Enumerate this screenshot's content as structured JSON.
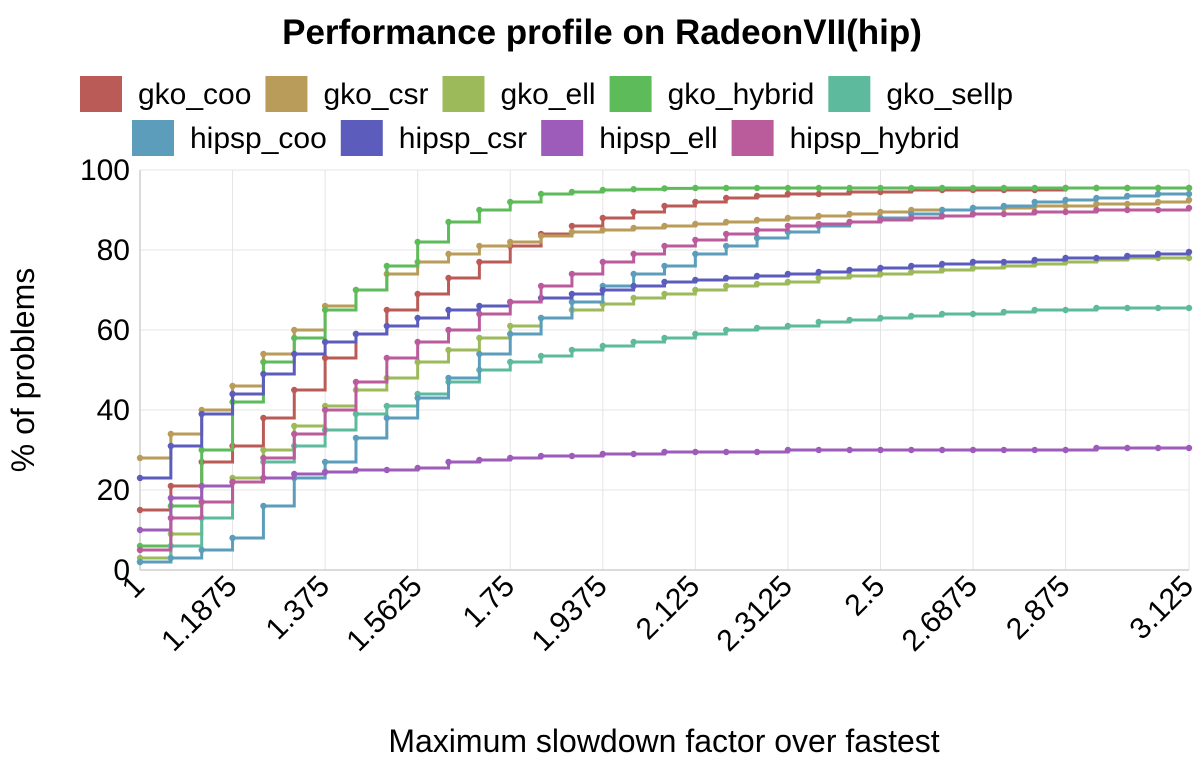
{
  "chart_data": {
    "type": "line",
    "step": true,
    "title": "Performance profile on RadeonVII(hip)",
    "xlabel": "Maximum slowdown factor over fastest",
    "ylabel": "% of problems",
    "xlim": [
      1,
      3.125
    ],
    "ylim": [
      0,
      100
    ],
    "x_ticks": [
      "1",
      "1.1875",
      "1.375",
      "1.5625",
      "1.75",
      "1.9375",
      "2.125",
      "2.3125",
      "2.5",
      "2.6875",
      "2.875",
      "3.125"
    ],
    "y_ticks": [
      "0",
      "20",
      "40",
      "60",
      "80",
      "100"
    ],
    "grid": true,
    "legend_position": "top",
    "x": [
      1.0,
      1.0625,
      1.125,
      1.1875,
      1.25,
      1.3125,
      1.375,
      1.4375,
      1.5,
      1.5625,
      1.625,
      1.6875,
      1.75,
      1.8125,
      1.875,
      1.9375,
      2.0,
      2.0625,
      2.125,
      2.1875,
      2.25,
      2.3125,
      2.375,
      2.4375,
      2.5,
      2.5625,
      2.625,
      2.6875,
      2.75,
      2.8125,
      2.875,
      2.9375,
      3.0,
      3.0625,
      3.125
    ],
    "series": [
      {
        "name": "gko_coo",
        "color": "#bb5b58",
        "values": [
          15,
          21,
          27,
          31,
          38,
          45,
          53,
          59,
          65,
          69,
          73,
          77,
          81,
          84,
          86,
          88,
          89.5,
          91,
          92,
          93,
          93.5,
          94,
          94,
          94.5,
          94.5,
          95,
          95,
          95,
          95,
          95,
          95.5,
          95.5,
          95.5,
          95.5,
          95.5
        ]
      },
      {
        "name": "gko_csr",
        "color": "#b99c5a",
        "values": [
          28,
          34,
          40,
          46,
          54,
          60,
          66,
          70,
          74,
          77,
          79,
          81,
          82,
          83.5,
          84.5,
          85,
          85.5,
          86,
          86.5,
          87,
          87.5,
          88,
          88.5,
          89,
          89.5,
          90,
          90,
          90.5,
          90.5,
          91,
          91,
          91.5,
          91.5,
          92,
          92.5
        ]
      },
      {
        "name": "gko_ell",
        "color": "#9dba5b",
        "values": [
          3,
          9,
          17,
          23,
          30,
          36,
          41,
          45,
          48,
          52,
          55,
          58,
          61,
          63,
          65,
          66.5,
          68,
          69,
          70,
          71,
          71.5,
          72,
          73,
          73.5,
          74,
          74.5,
          75,
          75.5,
          76,
          76.5,
          77,
          77.5,
          78,
          78,
          78
        ]
      },
      {
        "name": "gko_hybrid",
        "color": "#5ebb5a",
        "values": [
          6,
          16,
          30,
          42,
          52,
          58,
          65,
          70,
          76,
          82,
          87,
          90,
          92,
          94,
          94.5,
          95,
          95.2,
          95.4,
          95.5,
          95.5,
          95.5,
          95.5,
          95.5,
          95.5,
          95.5,
          95.5,
          95.5,
          95.5,
          95.5,
          95.5,
          95.5,
          95.5,
          95.5,
          95.5,
          95.5
        ]
      },
      {
        "name": "gko_sellp",
        "color": "#5dba9c",
        "values": [
          2,
          6,
          13,
          22,
          27,
          31,
          35,
          39,
          41,
          44,
          47,
          50,
          52,
          53.5,
          55,
          56,
          57,
          58,
          59,
          60,
          60.5,
          61,
          62,
          62.5,
          63,
          63.5,
          64,
          64,
          64.5,
          65,
          65,
          65.5,
          65.5,
          65.5,
          65.5
        ]
      },
      {
        "name": "hipsp_coo",
        "color": "#5b9dba",
        "values": [
          2,
          3,
          5,
          8,
          16,
          23,
          27,
          33,
          38,
          43,
          48,
          54,
          59,
          63,
          67,
          71,
          74,
          76,
          79,
          81,
          83,
          84.5,
          86,
          87,
          88,
          89,
          90,
          90.5,
          91,
          92,
          92.5,
          93,
          93.5,
          94,
          94
        ]
      },
      {
        "name": "hipsp_csr",
        "color": "#5b5cbb",
        "values": [
          23,
          31,
          39,
          44,
          49,
          54,
          57,
          59,
          61,
          63,
          65,
          66,
          67,
          68,
          69,
          70,
          71,
          72,
          72.5,
          73,
          73.5,
          74,
          74.5,
          75,
          75.5,
          76,
          76.5,
          77,
          77,
          77.5,
          78,
          78,
          78.5,
          79,
          79.5
        ]
      },
      {
        "name": "hipsp_ell",
        "color": "#9d5bba",
        "values": [
          10,
          18,
          21,
          22,
          23,
          24,
          24.5,
          25,
          25,
          25.5,
          27,
          27.5,
          28,
          28.5,
          28.5,
          29,
          29,
          29.5,
          29.5,
          29.5,
          29.5,
          30,
          30,
          30,
          30,
          30,
          30,
          30,
          30,
          30,
          30,
          30.5,
          30.5,
          30.5,
          30.5
        ]
      },
      {
        "name": "hipsp_hybrid",
        "color": "#ba5b9c",
        "values": [
          5,
          13,
          17,
          22,
          28,
          34,
          40,
          47,
          53,
          57,
          60,
          64,
          67,
          71,
          74,
          77,
          79,
          81,
          82.5,
          84,
          85,
          86,
          86.5,
          87,
          87.5,
          88,
          88.5,
          89,
          89,
          89.5,
          89.5,
          90,
          90,
          90,
          90.5
        ]
      }
    ]
  }
}
